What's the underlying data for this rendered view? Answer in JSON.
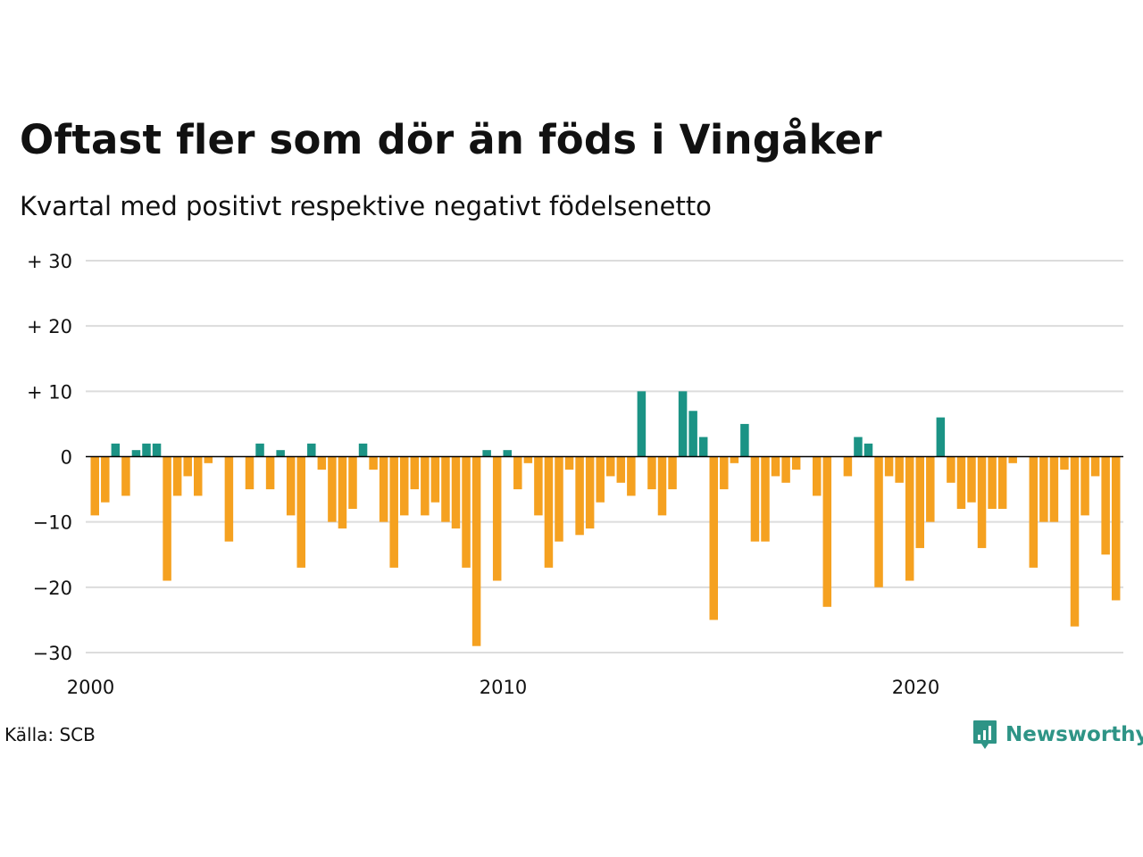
{
  "title": "Oftast fler som dör än föds i Vingåker",
  "subtitle": "Kvartal med positivt respektive negativt födelsenetto",
  "source": "Källa: SCB",
  "logo": {
    "text": "Newsworthy",
    "icon": "bar-chart-speech-bubble-icon"
  },
  "colors": {
    "positive": "#1b9385",
    "negative": "#f5a120",
    "grid": "#dcdcdc",
    "zero": "#000000"
  },
  "chart_data": {
    "type": "bar",
    "x_unit": "kvartal",
    "start": "2000 Q1",
    "values": [
      -9,
      -7,
      2,
      -6,
      1,
      2,
      2,
      -19,
      -6,
      -3,
      -6,
      -1,
      0,
      -13,
      0,
      -5,
      2,
      -5,
      1,
      -9,
      -17,
      2,
      -2,
      -10,
      -11,
      -8,
      2,
      -2,
      -10,
      -17,
      -9,
      -5,
      -9,
      -7,
      -10,
      -11,
      -17,
      -29,
      1,
      -19,
      1,
      -5,
      -1,
      -9,
      -17,
      -13,
      -2,
      -12,
      -11,
      -7,
      -3,
      -4,
      -6,
      10,
      -5,
      -9,
      -5,
      10,
      7,
      3,
      -25,
      -5,
      -1,
      5,
      -13,
      -13,
      -3,
      -4,
      -2,
      0,
      -6,
      -23,
      0,
      -3,
      3,
      2,
      -20,
      -3,
      -4,
      -19,
      -14,
      -10,
      6,
      -4,
      -8,
      -7,
      -14,
      -8,
      -8,
      -1,
      0,
      -17,
      -10,
      -10,
      -2,
      -26,
      -9,
      -3,
      -15,
      -22
    ],
    "ylim": [
      -30,
      30
    ],
    "yticks": [
      {
        "value": 30,
        "label": "+ 30"
      },
      {
        "value": 20,
        "label": "+ 20"
      },
      {
        "value": 10,
        "label": "+ 10"
      },
      {
        "value": 0,
        "label": "0"
      },
      {
        "value": -10,
        "label": "−10"
      },
      {
        "value": -20,
        "label": "−20"
      },
      {
        "value": -30,
        "label": "−30"
      }
    ],
    "xticks": [
      {
        "index": 0,
        "label": "2000"
      },
      {
        "index": 40,
        "label": "2010"
      },
      {
        "index": 80,
        "label": "2020"
      }
    ],
    "grid": true,
    "legend": "none"
  }
}
